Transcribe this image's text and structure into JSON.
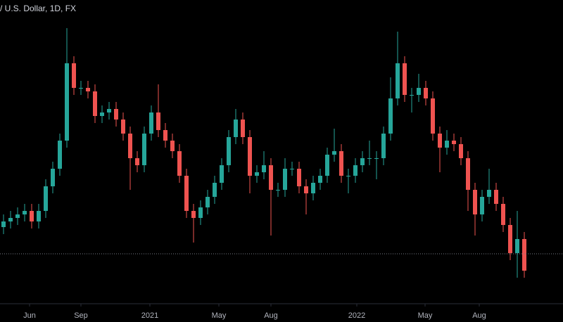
{
  "chart_data": {
    "type": "candlestick",
    "title": "/ U.S. Dollar, 1D, FX",
    "up_color": "#26a69a",
    "down_color": "#ef5350",
    "xlim": [
      -0.5,
      79.5
    ],
    "ylim": [
      28,
      458
    ],
    "xticks": [
      {
        "value": 3.7,
        "label": "Jun"
      },
      {
        "value": 11,
        "label": "Sep"
      },
      {
        "value": 20.8,
        "label": "2021"
      },
      {
        "value": 30.6,
        "label": "May"
      },
      {
        "value": 38,
        "label": "Aug"
      },
      {
        "value": 50.2,
        "label": "2022"
      },
      {
        "value": 59.9,
        "label": "May"
      },
      {
        "value": 67.6,
        "label": "Aug"
      }
    ],
    "price_line": 97,
    "candles": [
      [
        135,
        153,
        125,
        143
      ],
      [
        143,
        158,
        133,
        148
      ],
      [
        148,
        163,
        138,
        153
      ],
      [
        153,
        168,
        143,
        158
      ],
      [
        158,
        168,
        133,
        143
      ],
      [
        143,
        168,
        133,
        158
      ],
      [
        158,
        203,
        148,
        193
      ],
      [
        193,
        228,
        183,
        218
      ],
      [
        218,
        268,
        208,
        258
      ],
      [
        258,
        418,
        248,
        368
      ],
      [
        368,
        378,
        323,
        333
      ],
      [
        333,
        343,
        323,
        333
      ],
      [
        333,
        343,
        318,
        328
      ],
      [
        328,
        338,
        283,
        293
      ],
      [
        293,
        308,
        283,
        298
      ],
      [
        298,
        313,
        288,
        303
      ],
      [
        303,
        313,
        278,
        288
      ],
      [
        288,
        298,
        258,
        268
      ],
      [
        268,
        278,
        188,
        233
      ],
      [
        233,
        243,
        213,
        223
      ],
      [
        223,
        278,
        213,
        268
      ],
      [
        268,
        308,
        258,
        298
      ],
      [
        298,
        338,
        263,
        273
      ],
      [
        273,
        283,
        248,
        258
      ],
      [
        258,
        268,
        233,
        243
      ],
      [
        243,
        253,
        198,
        208
      ],
      [
        208,
        218,
        148,
        158
      ],
      [
        158,
        168,
        113,
        148
      ],
      [
        148,
        173,
        138,
        163
      ],
      [
        163,
        188,
        153,
        178
      ],
      [
        178,
        208,
        168,
        198
      ],
      [
        198,
        233,
        188,
        223
      ],
      [
        223,
        273,
        213,
        263
      ],
      [
        263,
        303,
        253,
        288
      ],
      [
        288,
        298,
        253,
        263
      ],
      [
        263,
        273,
        183,
        208
      ],
      [
        208,
        223,
        198,
        213
      ],
      [
        213,
        243,
        203,
        223
      ],
      [
        223,
        233,
        123,
        188
      ],
      [
        188,
        198,
        178,
        188
      ],
      [
        188,
        233,
        178,
        218
      ],
      [
        218,
        228,
        208,
        218
      ],
      [
        218,
        228,
        183,
        193
      ],
      [
        193,
        203,
        153,
        183
      ],
      [
        183,
        208,
        173,
        198
      ],
      [
        198,
        218,
        188,
        208
      ],
      [
        208,
        248,
        198,
        238
      ],
      [
        238,
        275,
        228,
        243
      ],
      [
        243,
        253,
        198,
        208
      ],
      [
        208,
        218,
        183,
        208
      ],
      [
        208,
        233,
        198,
        223
      ],
      [
        223,
        243,
        213,
        233
      ],
      [
        233,
        258,
        223,
        233
      ],
      [
        233,
        243,
        203,
        233
      ],
      [
        233,
        278,
        223,
        268
      ],
      [
        268,
        348,
        258,
        318
      ],
      [
        318,
        413,
        308,
        368
      ],
      [
        368,
        378,
        313,
        323
      ],
      [
        323,
        333,
        298,
        323
      ],
      [
        323,
        353,
        313,
        333
      ],
      [
        333,
        343,
        308,
        318
      ],
      [
        318,
        328,
        258,
        268
      ],
      [
        268,
        278,
        213,
        248
      ],
      [
        248,
        273,
        238,
        258
      ],
      [
        258,
        268,
        243,
        253
      ],
      [
        253,
        263,
        223,
        233
      ],
      [
        233,
        243,
        158,
        188
      ],
      [
        188,
        198,
        123,
        153
      ],
      [
        153,
        188,
        143,
        178
      ],
      [
        178,
        218,
        168,
        188
      ],
      [
        188,
        198,
        158,
        168
      ],
      [
        168,
        178,
        128,
        138
      ],
      [
        138,
        148,
        88,
        98
      ],
      [
        98,
        158,
        63,
        118
      ],
      [
        118,
        128,
        63,
        73
      ]
    ]
  }
}
